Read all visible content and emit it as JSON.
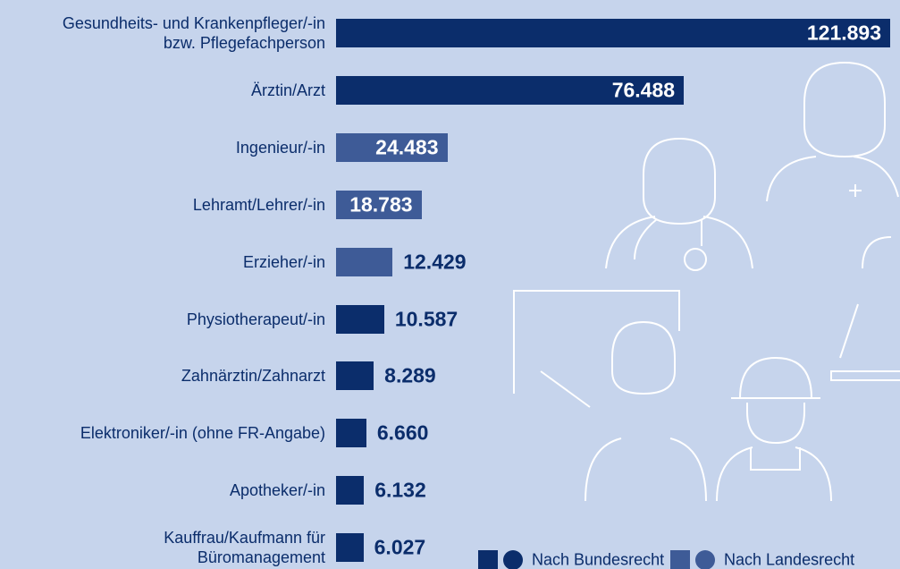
{
  "chart_data": {
    "type": "bar",
    "orientation": "horizontal",
    "categories": [
      "Gesundheits- und Krankenpfleger/-in\nbzw. Pflegefachperson",
      "Ärztin/Arzt",
      "Ingenieur/-in",
      "Lehramt/Lehrer/-in",
      "Erzieher/-in",
      "Physiotherapeut/-in",
      "Zahnärztin/Zahnarzt",
      "Elektroniker/-in (ohne FR-Angabe)",
      "Apotheker/-in",
      "Kauffrau/Kaufmann für\nBüromanagement"
    ],
    "values": [
      121893,
      76488,
      24483,
      18783,
      12429,
      10587,
      8289,
      6660,
      6132,
      6027
    ],
    "value_labels": [
      "121.893",
      "76.488",
      "24.483",
      "18.783",
      "12.429",
      "10.587",
      "8.289",
      "6.660",
      "6.132",
      "6.027"
    ],
    "bar_colors": [
      "#0b2d6b",
      "#0b2d6b",
      "#3e5b97",
      "#3e5b97",
      "#3e5b97",
      "#0b2d6b",
      "#0b2d6b",
      "#0b2d6b",
      "#0b2d6b",
      "#0b2d6b"
    ],
    "legend": [
      {
        "name": "Nach Bundesrecht",
        "color": "#0b2d6b"
      },
      {
        "name": "Nach Landesrecht",
        "color": "#3e5b97"
      }
    ]
  }
}
